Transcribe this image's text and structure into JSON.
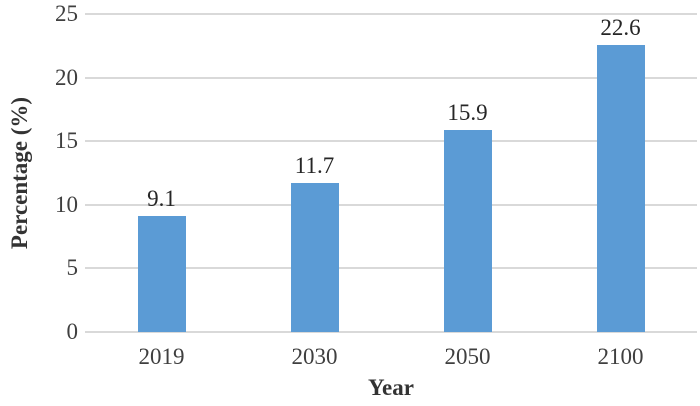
{
  "chart_data": {
    "type": "bar",
    "categories": [
      "2019",
      "2030",
      "2050",
      "2100"
    ],
    "values": [
      9.1,
      11.7,
      15.9,
      22.6
    ],
    "data_labels": [
      "9.1",
      "11.7",
      "15.9",
      "22.6"
    ],
    "title": "",
    "xlabel": "Year",
    "ylabel": "Percentage (%)",
    "ylim": [
      0,
      25
    ],
    "yticks": [
      0,
      5,
      10,
      15,
      20,
      25
    ],
    "grid": "horizontal-only",
    "legend": "none",
    "bar_color": "#5b9bd5",
    "gridline_color": "#d9d9d9",
    "tick_label_color": "#3f3f3f",
    "value_label_color": "#262626"
  }
}
